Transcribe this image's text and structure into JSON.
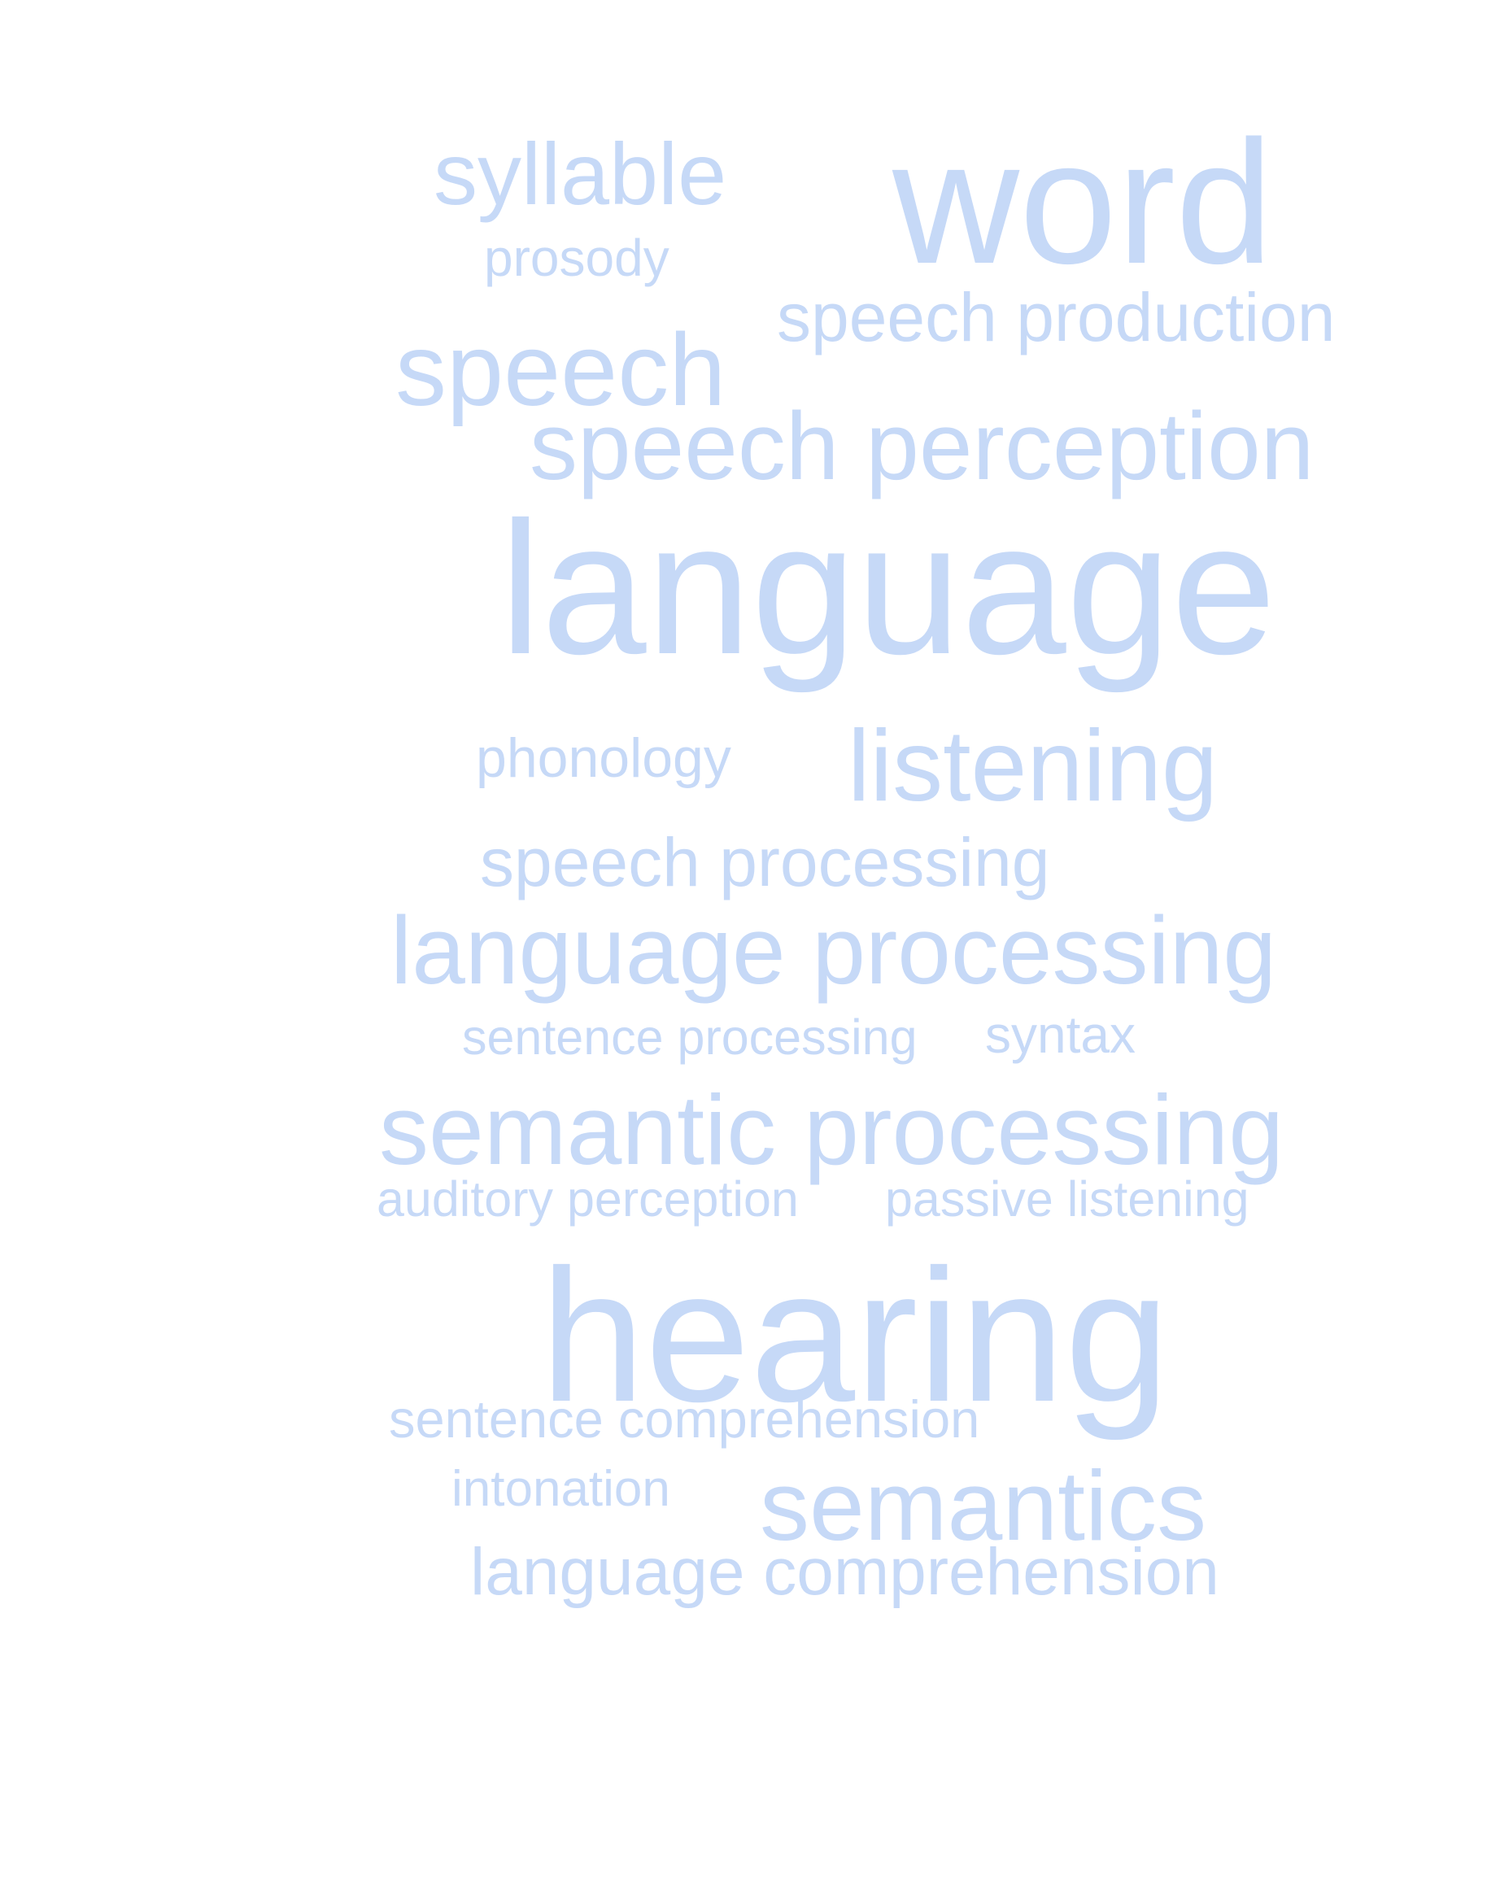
{
  "word_cloud": {
    "color": "#c6d9f7",
    "words": [
      {
        "id": "syllable",
        "text": "syllable"
      },
      {
        "id": "word",
        "text": "word"
      },
      {
        "id": "prosody",
        "text": "prosody"
      },
      {
        "id": "speech_production",
        "text": "speech production"
      },
      {
        "id": "speech",
        "text": "speech"
      },
      {
        "id": "speech_perception",
        "text": "speech perception"
      },
      {
        "id": "language",
        "text": "language"
      },
      {
        "id": "phonology",
        "text": "phonology"
      },
      {
        "id": "listening",
        "text": "listening"
      },
      {
        "id": "speech_processing",
        "text": "speech processing"
      },
      {
        "id": "language_processing",
        "text": "language processing"
      },
      {
        "id": "sentence_processing",
        "text": "sentence processing"
      },
      {
        "id": "syntax",
        "text": "syntax"
      },
      {
        "id": "semantic_processing",
        "text": "semantic processing"
      },
      {
        "id": "auditory_perception",
        "text": "auditory perception"
      },
      {
        "id": "passive_listening",
        "text": "passive listening"
      },
      {
        "id": "hearing",
        "text": "hearing"
      },
      {
        "id": "sentence_comprehension",
        "text": "sentence comprehension"
      },
      {
        "id": "intonation",
        "text": "intonation"
      },
      {
        "id": "semantics",
        "text": "semantics"
      },
      {
        "id": "language_comprehension",
        "text": "language comprehension"
      }
    ]
  }
}
